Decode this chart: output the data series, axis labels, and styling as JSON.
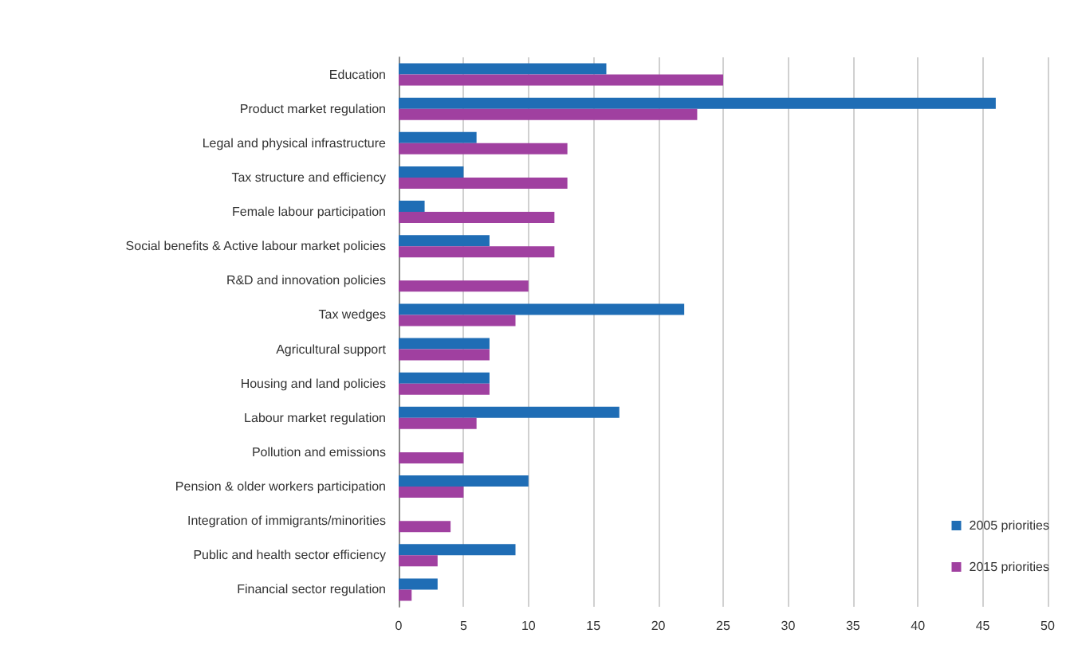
{
  "chart_data": {
    "type": "bar",
    "orientation": "horizontal",
    "categories": [
      "Education",
      "Product market regulation",
      "Legal and physical infrastructure",
      "Tax structure and efficiency",
      "Female labour participation",
      "Social benefits & Active labour market policies",
      "R&D and innovation policies",
      "Tax wedges",
      "Agricultural support",
      "Housing and land policies",
      "Labour market regulation",
      "Pollution and emissions",
      "Pension & older workers participation",
      "Integration of immigrants/minorities",
      "Public and health sector efficiency",
      "Financial sector regulation"
    ],
    "series": [
      {
        "name": "2005 priorities",
        "color": "#1f6db5",
        "values": [
          16,
          46,
          6,
          5,
          2,
          7,
          null,
          22,
          7,
          7,
          17,
          null,
          10,
          null,
          9,
          3
        ]
      },
      {
        "name": "2015 priorities",
        "color": "#a040a0",
        "values": [
          25,
          23,
          13,
          13,
          12,
          12,
          10,
          9,
          7,
          7,
          6,
          5,
          5,
          4,
          3,
          1
        ]
      }
    ],
    "xlim": [
      0,
      50
    ],
    "xticks": [
      0,
      5,
      10,
      15,
      20,
      25,
      30,
      35,
      40,
      45,
      50
    ],
    "grid": "x",
    "legend": "bottom right"
  }
}
